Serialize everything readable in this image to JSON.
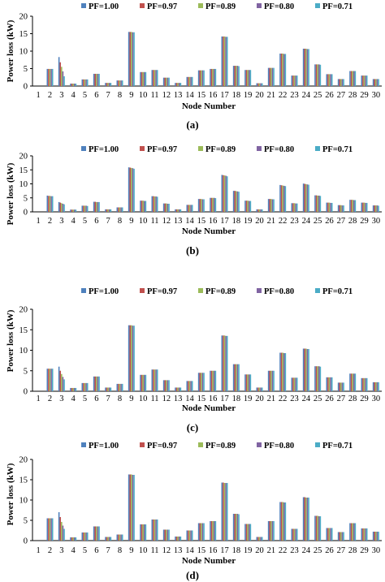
{
  "chart_data": [
    {
      "type": "bar",
      "caption": "(a)",
      "ylabel": "Power loss (kW)",
      "xlabel": "Node Number",
      "ylim": [
        0,
        20
      ],
      "yticks": [
        0,
        5,
        10,
        15,
        20
      ],
      "categories": [
        "1",
        "2",
        "3",
        "4",
        "5",
        "6",
        "7",
        "8",
        "9",
        "10",
        "11",
        "12",
        "13",
        "14",
        "15",
        "16",
        "17",
        "18",
        "19",
        "20",
        "21",
        "22",
        "23",
        "24",
        "25",
        "26",
        "27",
        "28",
        "29",
        "30"
      ],
      "legend": "top-left, horizontal",
      "series": [
        {
          "name": "PF=1.00",
          "color": "#4f81bd",
          "values": [
            0,
            4.9,
            8.3,
            0.7,
            1.9,
            3.5,
            0.9,
            1.6,
            15.5,
            4.0,
            4.6,
            2.4,
            0.9,
            2.6,
            4.5,
            4.9,
            14.2,
            5.8,
            4.6,
            0.8,
            5.2,
            9.3,
            3.0,
            10.7,
            6.2,
            3.4,
            2.0,
            4.3,
            3.0,
            2.0
          ]
        },
        {
          "name": "PF=0.97",
          "color": "#c0504d",
          "values": [
            0,
            4.9,
            6.8,
            0.7,
            1.9,
            3.5,
            0.9,
            1.6,
            15.5,
            4.0,
            4.6,
            2.4,
            0.9,
            2.6,
            4.5,
            4.9,
            14.2,
            5.8,
            4.6,
            0.8,
            5.2,
            9.3,
            3.0,
            10.7,
            6.2,
            3.4,
            2.0,
            4.3,
            3.0,
            2.0
          ]
        },
        {
          "name": "PF=0.89",
          "color": "#9bbb59",
          "values": [
            0,
            4.9,
            5.5,
            0.7,
            1.9,
            3.5,
            0.9,
            1.6,
            15.5,
            4.0,
            4.6,
            2.4,
            0.9,
            2.6,
            4.5,
            4.9,
            14.2,
            5.8,
            4.6,
            0.8,
            5.2,
            9.3,
            3.0,
            10.7,
            6.2,
            3.4,
            2.0,
            4.3,
            3.0,
            2.0
          ]
        },
        {
          "name": "PF=0.80",
          "color": "#8064a2",
          "values": [
            0,
            4.9,
            4.2,
            0.7,
            1.9,
            3.5,
            0.9,
            1.6,
            15.4,
            4.0,
            4.6,
            2.4,
            0.9,
            2.6,
            4.5,
            4.9,
            14.1,
            5.8,
            4.6,
            0.8,
            5.2,
            9.2,
            3.0,
            10.6,
            6.2,
            3.4,
            2.0,
            4.3,
            3.0,
            2.0
          ]
        },
        {
          "name": "PF=0.71",
          "color": "#4bacc6",
          "values": [
            0,
            4.9,
            2.8,
            0.7,
            1.9,
            3.5,
            0.9,
            1.6,
            15.4,
            4.0,
            4.6,
            2.4,
            0.9,
            2.6,
            4.5,
            4.9,
            14.1,
            5.7,
            4.6,
            0.8,
            5.2,
            9.2,
            3.0,
            10.6,
            6.1,
            3.4,
            2.0,
            4.3,
            3.0,
            2.0
          ]
        }
      ]
    },
    {
      "type": "bar",
      "caption": "(b)",
      "ylabel": "Power loss (kW)",
      "xlabel": "Node Number",
      "ylim": [
        0,
        20
      ],
      "yticks": [
        0,
        5,
        10,
        15,
        20
      ],
      "categories": [
        "1",
        "2",
        "3",
        "4",
        "5",
        "6",
        "7",
        "8",
        "9",
        "10",
        "11",
        "12",
        "13",
        "14",
        "15",
        "16",
        "17",
        "18",
        "19",
        "20",
        "21",
        "22",
        "23",
        "24",
        "25",
        "26",
        "27",
        "28",
        "29",
        "30"
      ],
      "legend": "top-left, horizontal",
      "series": [
        {
          "name": "PF=1.00",
          "color": "#4f81bd",
          "values": [
            0,
            5.8,
            3.5,
            0.8,
            2.2,
            3.6,
            0.9,
            1.6,
            15.9,
            4.0,
            5.6,
            3.0,
            0.9,
            2.5,
            4.6,
            5.0,
            13.2,
            7.5,
            4.0,
            0.9,
            4.6,
            9.6,
            3.1,
            10.1,
            5.9,
            3.3,
            2.4,
            4.3,
            3.3,
            2.3
          ]
        },
        {
          "name": "PF=0.97",
          "color": "#c0504d",
          "values": [
            0,
            5.7,
            3.3,
            0.8,
            2.2,
            3.6,
            0.9,
            1.6,
            15.8,
            4.0,
            5.6,
            3.0,
            0.9,
            2.5,
            4.6,
            5.0,
            13.1,
            7.5,
            4.0,
            0.9,
            4.6,
            9.5,
            3.1,
            10.0,
            5.9,
            3.3,
            2.4,
            4.3,
            3.3,
            2.3
          ]
        },
        {
          "name": "PF=0.89",
          "color": "#9bbb59",
          "values": [
            0,
            5.7,
            3.1,
            0.8,
            2.2,
            3.5,
            0.9,
            1.6,
            15.7,
            4.0,
            5.5,
            3.0,
            0.9,
            2.5,
            4.6,
            5.0,
            13.0,
            7.4,
            4.0,
            0.9,
            4.6,
            9.4,
            3.1,
            9.9,
            5.8,
            3.3,
            2.4,
            4.3,
            3.3,
            2.3
          ]
        },
        {
          "name": "PF=0.80",
          "color": "#8064a2",
          "values": [
            0,
            5.6,
            2.9,
            0.8,
            2.2,
            3.5,
            0.9,
            1.6,
            15.6,
            3.9,
            5.5,
            2.9,
            0.9,
            2.5,
            4.5,
            5.0,
            12.9,
            7.3,
            3.9,
            0.9,
            4.5,
            9.3,
            3.0,
            9.8,
            5.8,
            3.2,
            2.3,
            4.2,
            3.2,
            2.3
          ]
        },
        {
          "name": "PF=0.71",
          "color": "#4bacc6",
          "values": [
            0,
            5.6,
            2.7,
            0.8,
            2.1,
            3.5,
            0.9,
            1.6,
            15.4,
            3.9,
            5.4,
            2.9,
            0.9,
            2.5,
            4.5,
            4.9,
            12.7,
            7.2,
            3.9,
            0.9,
            4.5,
            9.2,
            3.0,
            9.7,
            5.7,
            3.2,
            2.3,
            4.2,
            3.2,
            2.2
          ]
        }
      ]
    },
    {
      "type": "bar",
      "caption": "(c)",
      "ylabel": "Power loss (kW)",
      "xlabel": "Node Number",
      "ylim": [
        0,
        20
      ],
      "yticks": [
        0,
        5,
        10,
        15,
        20
      ],
      "categories": [
        "1",
        "2",
        "3",
        "4",
        "5",
        "6",
        "7",
        "8",
        "9",
        "10",
        "11",
        "12",
        "13",
        "14",
        "15",
        "16",
        "17",
        "18",
        "19",
        "20",
        "21",
        "22",
        "23",
        "24",
        "25",
        "26",
        "27",
        "28",
        "29",
        "30"
      ],
      "legend": "top-left, horizontal",
      "series": [
        {
          "name": "PF=1.00",
          "color": "#4f81bd",
          "values": [
            0,
            5.5,
            6.0,
            0.8,
            2.0,
            3.6,
            0.9,
            1.8,
            16.1,
            4.0,
            5.3,
            2.7,
            0.9,
            2.5,
            4.5,
            5.0,
            13.6,
            6.6,
            4.1,
            0.9,
            5.0,
            9.4,
            3.3,
            10.4,
            6.1,
            3.4,
            2.1,
            4.3,
            3.2,
            2.2
          ]
        },
        {
          "name": "PF=0.97",
          "color": "#c0504d",
          "values": [
            0,
            5.5,
            5.0,
            0.8,
            2.0,
            3.6,
            0.9,
            1.8,
            16.1,
            4.0,
            5.3,
            2.7,
            0.9,
            2.5,
            4.5,
            5.0,
            13.6,
            6.6,
            4.1,
            0.9,
            5.0,
            9.4,
            3.3,
            10.4,
            6.1,
            3.4,
            2.1,
            4.3,
            3.2,
            2.2
          ]
        },
        {
          "name": "PF=0.89",
          "color": "#9bbb59",
          "values": [
            0,
            5.5,
            4.2,
            0.8,
            2.0,
            3.6,
            0.9,
            1.8,
            16.1,
            4.0,
            5.3,
            2.7,
            0.9,
            2.5,
            4.5,
            5.0,
            13.6,
            6.6,
            4.1,
            0.9,
            5.0,
            9.4,
            3.3,
            10.4,
            6.1,
            3.4,
            2.1,
            4.3,
            3.2,
            2.2
          ]
        },
        {
          "name": "PF=0.80",
          "color": "#8064a2",
          "values": [
            0,
            5.5,
            3.5,
            0.8,
            2.0,
            3.6,
            0.9,
            1.8,
            16.0,
            4.0,
            5.3,
            2.7,
            0.9,
            2.5,
            4.5,
            5.0,
            13.5,
            6.6,
            4.1,
            0.9,
            5.0,
            9.3,
            3.3,
            10.3,
            6.1,
            3.4,
            2.1,
            4.3,
            3.2,
            2.2
          ]
        },
        {
          "name": "PF=0.71",
          "color": "#4bacc6",
          "values": [
            0,
            5.5,
            2.9,
            0.8,
            2.0,
            3.6,
            0.9,
            1.8,
            16.0,
            4.0,
            5.3,
            2.7,
            0.9,
            2.5,
            4.5,
            5.0,
            13.5,
            6.6,
            4.1,
            0.9,
            5.0,
            9.3,
            3.3,
            10.3,
            6.0,
            3.4,
            2.1,
            4.3,
            3.2,
            2.2
          ]
        }
      ]
    },
    {
      "type": "bar",
      "caption": "(d)",
      "ylabel": "Power loss (kW)",
      "xlabel": "Node Number",
      "ylim": [
        0,
        20
      ],
      "yticks": [
        0,
        5,
        10,
        15,
        20
      ],
      "categories": [
        "1",
        "2",
        "3",
        "4",
        "5",
        "6",
        "7",
        "8",
        "9",
        "10",
        "11",
        "12",
        "13",
        "14",
        "15",
        "16",
        "17",
        "18",
        "19",
        "20",
        "21",
        "22",
        "23",
        "24",
        "25",
        "26",
        "27",
        "28",
        "29",
        "30"
      ],
      "legend": "top-left, horizontal",
      "series": [
        {
          "name": "PF=1.00",
          "color": "#4f81bd",
          "values": [
            0,
            5.5,
            7.0,
            0.8,
            2.0,
            3.5,
            0.9,
            1.5,
            16.3,
            4.0,
            5.2,
            2.7,
            1.0,
            2.5,
            4.3,
            4.8,
            14.3,
            6.6,
            4.1,
            0.9,
            4.8,
            9.5,
            2.9,
            10.7,
            6.1,
            3.1,
            2.1,
            4.3,
            3.0,
            2.2
          ]
        },
        {
          "name": "PF=0.97",
          "color": "#c0504d",
          "values": [
            0,
            5.5,
            5.8,
            0.8,
            2.0,
            3.5,
            0.9,
            1.5,
            16.3,
            4.0,
            5.2,
            2.7,
            1.0,
            2.5,
            4.3,
            4.8,
            14.3,
            6.6,
            4.1,
            0.9,
            4.8,
            9.5,
            2.9,
            10.7,
            6.1,
            3.1,
            2.1,
            4.3,
            3.0,
            2.2
          ]
        },
        {
          "name": "PF=0.89",
          "color": "#9bbb59",
          "values": [
            0,
            5.5,
            4.6,
            0.8,
            2.0,
            3.5,
            0.9,
            1.5,
            16.3,
            4.0,
            5.2,
            2.7,
            1.0,
            2.5,
            4.3,
            4.8,
            14.2,
            6.6,
            4.1,
            0.9,
            4.8,
            9.5,
            2.9,
            10.6,
            6.1,
            3.1,
            2.1,
            4.3,
            3.0,
            2.2
          ]
        },
        {
          "name": "PF=0.80",
          "color": "#8064a2",
          "values": [
            0,
            5.5,
            3.7,
            0.8,
            2.0,
            3.5,
            0.9,
            1.5,
            16.2,
            4.0,
            5.2,
            2.7,
            1.0,
            2.5,
            4.3,
            4.8,
            14.2,
            6.6,
            4.1,
            0.9,
            4.8,
            9.4,
            2.9,
            10.6,
            6.0,
            3.1,
            2.1,
            4.3,
            3.0,
            2.2
          ]
        },
        {
          "name": "PF=0.71",
          "color": "#4bacc6",
          "values": [
            0,
            5.5,
            2.9,
            0.8,
            2.0,
            3.5,
            0.9,
            1.5,
            16.2,
            4.0,
            5.2,
            2.7,
            1.0,
            2.5,
            4.3,
            4.8,
            14.2,
            6.5,
            4.1,
            0.9,
            4.8,
            9.4,
            2.9,
            10.6,
            6.0,
            3.1,
            2.1,
            4.3,
            3.0,
            2.2
          ]
        }
      ]
    }
  ]
}
